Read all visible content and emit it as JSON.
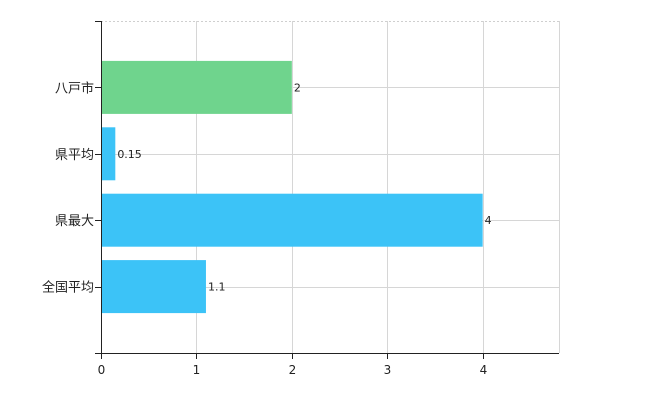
{
  "chart_data": {
    "type": "bar",
    "orientation": "horizontal",
    "title": "",
    "xlabel": "",
    "ylabel": "",
    "categories": [
      "八戸市",
      "県平均",
      "県最大",
      "全国平均"
    ],
    "values": [
      2,
      0.15,
      4,
      1.1
    ],
    "value_labels": [
      "2",
      "0.15",
      "4",
      "1.1"
    ],
    "bar_colors": [
      "#6fd48d",
      "#3cc3f7",
      "#3cc3f7",
      "#3cc3f7"
    ],
    "xlim": [
      0,
      4.8
    ],
    "xticks": [
      "0",
      "1",
      "2",
      "3",
      "4"
    ],
    "grid": true,
    "legend": "none"
  }
}
